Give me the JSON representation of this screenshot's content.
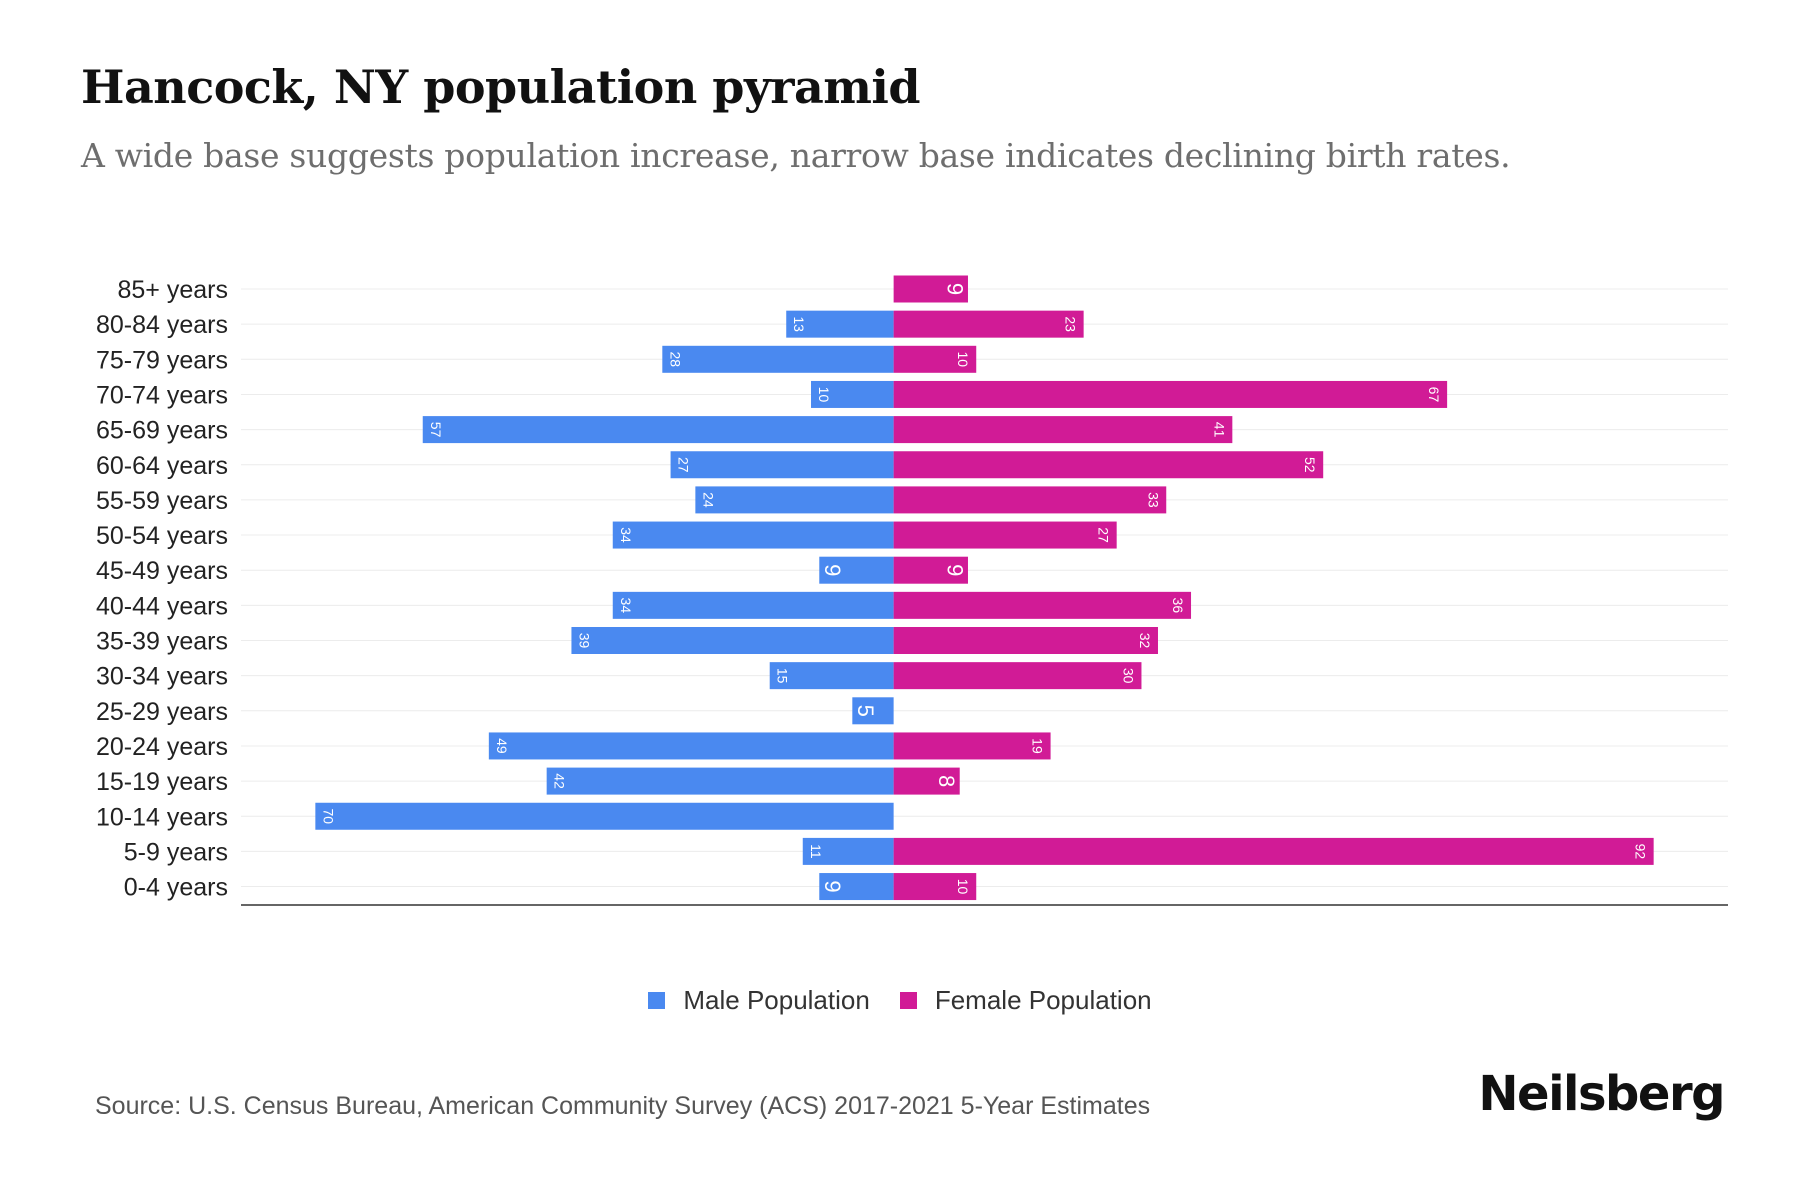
{
  "header": {
    "title": "Hancock, NY population pyramid",
    "subtitle": "A wide base suggests population increase, narrow base indicates declining birth rates."
  },
  "chart_data": {
    "type": "bar",
    "orientation": "horizontal-pyramid",
    "categories": [
      "85+ years",
      "80-84 years",
      "75-79 years",
      "70-74 years",
      "65-69 years",
      "60-64 years",
      "55-59 years",
      "50-54 years",
      "45-49 years",
      "40-44 years",
      "35-39 years",
      "30-34 years",
      "25-29 years",
      "20-24 years",
      "15-19 years",
      "10-14 years",
      "5-9 years",
      "0-4 years"
    ],
    "series": [
      {
        "name": "Male Population",
        "color": "#4a89f0",
        "values": [
          0,
          13,
          28,
          10,
          57,
          27,
          24,
          34,
          9,
          34,
          39,
          15,
          5,
          49,
          42,
          70,
          11,
          9
        ]
      },
      {
        "name": "Female Population",
        "color": "#d11b96",
        "values": [
          9,
          23,
          10,
          67,
          41,
          52,
          33,
          27,
          9,
          36,
          32,
          30,
          0,
          19,
          8,
          0,
          92,
          10
        ]
      }
    ],
    "xlim": [
      -79,
      101
    ],
    "grid": "horizontal",
    "legend": "bottom-center"
  },
  "legend": {
    "male_label": "Male Population",
    "female_label": "Female Population",
    "male_color": "#4a89f0",
    "female_color": "#d11b96"
  },
  "footer": {
    "source": "Source: U.S. Census Bureau, American Community Survey (ACS) 2017-2021 5-Year Estimates",
    "brand": "Neilsberg"
  }
}
